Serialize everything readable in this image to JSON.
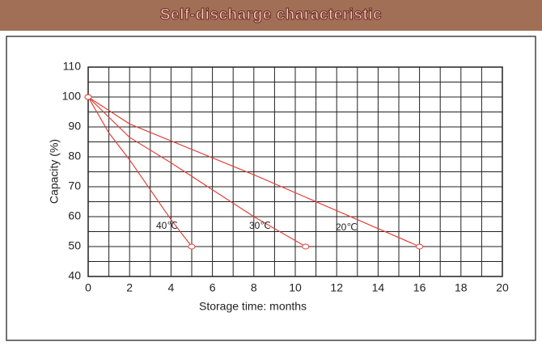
{
  "chart_data": {
    "type": "line",
    "title": "Self-discharge characteristic",
    "x_label": "Storage time: months",
    "y_label": "Capacity (%)",
    "xlim": [
      0,
      20
    ],
    "xticks": [
      0,
      2,
      4,
      6,
      8,
      10,
      12,
      14,
      16,
      18,
      20
    ],
    "ylim": [
      40,
      110
    ],
    "yticks": [
      40,
      50,
      60,
      70,
      80,
      90,
      100,
      110
    ],
    "grid": true,
    "series": [
      {
        "name": "40℃",
        "color": "#e0413a",
        "x": [
          0,
          1,
          2,
          3,
          4,
          5
        ],
        "values": [
          100,
          88,
          79,
          69,
          59,
          50
        ]
      },
      {
        "name": "30℃",
        "color": "#e0413a",
        "x": [
          0,
          2,
          4,
          6,
          8,
          10.5
        ],
        "values": [
          100,
          86.5,
          78,
          69,
          60,
          50
        ]
      },
      {
        "name": "20℃",
        "color": "#e0413a",
        "x": [
          0,
          2,
          8,
          16
        ],
        "values": [
          100,
          91,
          74,
          50
        ]
      }
    ]
  }
}
